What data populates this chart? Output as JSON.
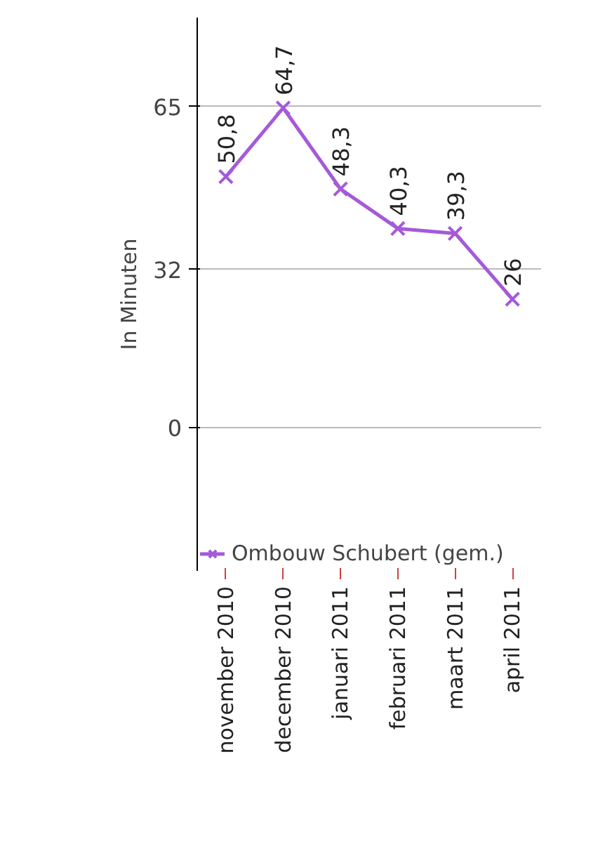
{
  "chart_data": {
    "type": "line",
    "ylabel": "In Minuten",
    "categories": [
      "november 2010",
      "december 2010",
      "januari 2011",
      "februari 2011",
      "maart 2011",
      "april 2011"
    ],
    "series": [
      {
        "name": "Ombouw Schubert (gem.)",
        "color": "#a55ad8",
        "values": [
          50.8,
          64.7,
          48.3,
          40.3,
          39.3,
          26
        ]
      }
    ],
    "value_labels": [
      "50,8",
      "64,7",
      "48,3",
      "40,3",
      "39,3",
      "26"
    ],
    "ylim": [
      -29,
      83
    ],
    "yticks": [
      0,
      32,
      65
    ],
    "grid": "y",
    "legend": "bottom left",
    "marker": "cross",
    "line_style": "solid"
  }
}
